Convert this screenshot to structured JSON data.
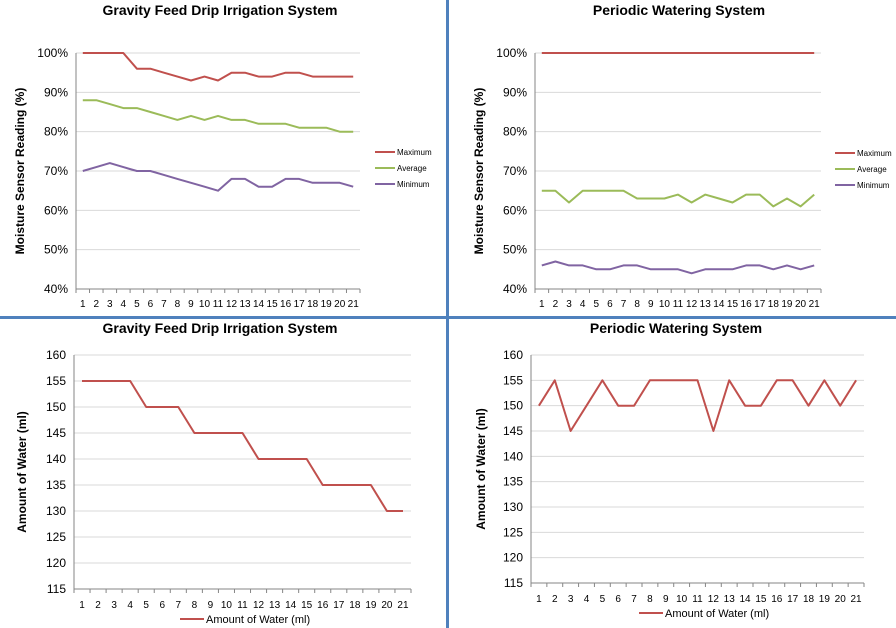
{
  "colors": {
    "maximum": "#c0504d",
    "average": "#9bbb59",
    "minimum": "#8064a2",
    "water": "#c0504d",
    "grid": "#d9d9d9",
    "divider": "#4f81bd"
  },
  "chart_data": [
    {
      "type": "line",
      "title": "Gravity Feed Drip Irrigation System",
      "xlabel": "",
      "ylabel": "Moisture Sensor Reading (%)",
      "ylim": [
        40,
        100
      ],
      "ytick_step": 10,
      "ytick_suffix": "%",
      "x": [
        1,
        2,
        3,
        4,
        5,
        6,
        7,
        8,
        9,
        10,
        11,
        12,
        13,
        14,
        15,
        16,
        17,
        18,
        19,
        20,
        21
      ],
      "legend_position": "right",
      "series": [
        {
          "name": "Maximum",
          "color": "#c0504d",
          "values": [
            100,
            100,
            100,
            100,
            96,
            96,
            95,
            94,
            93,
            94,
            93,
            95,
            95,
            94,
            94,
            95,
            95,
            94,
            94,
            94,
            94
          ]
        },
        {
          "name": "Average",
          "color": "#9bbb59",
          "values": [
            88,
            88,
            87,
            86,
            86,
            85,
            84,
            83,
            84,
            83,
            84,
            83,
            83,
            82,
            82,
            82,
            81,
            81,
            81,
            80,
            80
          ]
        },
        {
          "name": "Minimum",
          "color": "#8064a2",
          "values": [
            70,
            71,
            72,
            71,
            70,
            70,
            69,
            68,
            67,
            66,
            65,
            68,
            68,
            66,
            66,
            68,
            68,
            67,
            67,
            67,
            66
          ]
        }
      ]
    },
    {
      "type": "line",
      "title": "Periodic Watering System",
      "xlabel": "",
      "ylabel": "Moisture Sensor Reading (%)",
      "ylim": [
        40,
        100
      ],
      "ytick_step": 10,
      "ytick_suffix": "%",
      "x": [
        1,
        2,
        3,
        4,
        5,
        6,
        7,
        8,
        9,
        10,
        11,
        12,
        13,
        14,
        15,
        16,
        17,
        18,
        19,
        20,
        21
      ],
      "legend_position": "right",
      "series": [
        {
          "name": "Maximum",
          "color": "#c0504d",
          "values": [
            100,
            100,
            100,
            100,
            100,
            100,
            100,
            100,
            100,
            100,
            100,
            100,
            100,
            100,
            100,
            100,
            100,
            100,
            100,
            100,
            100
          ]
        },
        {
          "name": "Average",
          "color": "#9bbb59",
          "values": [
            65,
            65,
            62,
            65,
            65,
            65,
            65,
            63,
            63,
            63,
            64,
            62,
            64,
            63,
            62,
            64,
            64,
            61,
            63,
            61,
            64
          ]
        },
        {
          "name": "Minimum",
          "color": "#8064a2",
          "values": [
            46,
            47,
            46,
            46,
            45,
            45,
            46,
            46,
            45,
            45,
            45,
            44,
            45,
            45,
            45,
            46,
            46,
            45,
            46,
            45,
            46
          ]
        }
      ]
    },
    {
      "type": "line",
      "title": "Gravity Feed Drip Irrigation System",
      "xlabel": "",
      "ylabel": "Amount of Water (ml)",
      "ylim": [
        115,
        160
      ],
      "ytick_step": 5,
      "ytick_suffix": "",
      "x": [
        1,
        2,
        3,
        4,
        5,
        6,
        7,
        8,
        9,
        10,
        11,
        12,
        13,
        14,
        15,
        16,
        17,
        18,
        19,
        20,
        21
      ],
      "legend_position": "bottom",
      "series": [
        {
          "name": "Amount of Water (ml)",
          "color": "#c0504d",
          "values": [
            155,
            155,
            155,
            155,
            150,
            150,
            150,
            145,
            145,
            145,
            145,
            140,
            140,
            140,
            140,
            135,
            135,
            135,
            135,
            130,
            130
          ]
        }
      ]
    },
    {
      "type": "line",
      "title": "Periodic Watering System",
      "xlabel": "",
      "ylabel": "Amount of Water (ml)",
      "ylim": [
        115,
        160
      ],
      "ytick_step": 5,
      "ytick_suffix": "",
      "x": [
        1,
        2,
        3,
        4,
        5,
        6,
        7,
        8,
        9,
        10,
        11,
        12,
        13,
        14,
        15,
        16,
        17,
        18,
        19,
        20,
        21
      ],
      "legend_position": "bottom",
      "series": [
        {
          "name": "Amount of Water (ml)",
          "color": "#c0504d",
          "values": [
            150,
            155,
            145,
            150,
            155,
            150,
            150,
            155,
            155,
            155,
            155,
            145,
            155,
            150,
            150,
            155,
            155,
            150,
            155,
            150,
            155
          ]
        }
      ]
    }
  ]
}
